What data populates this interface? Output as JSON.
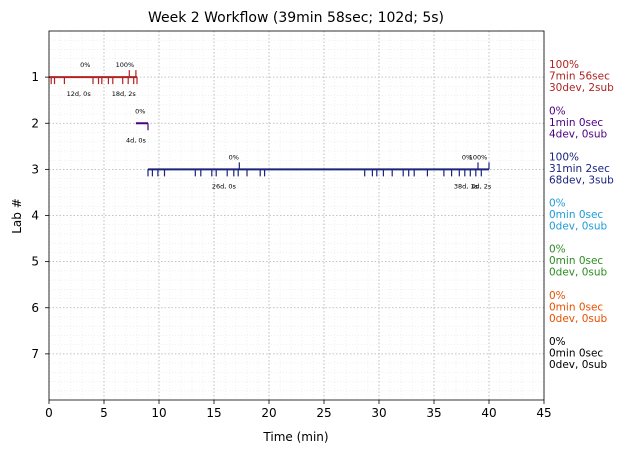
{
  "chart_data": {
    "type": "timeline",
    "title": "Week 2 Workflow (39min 58sec; 102d; 5s)",
    "xlabel": "Time (min)",
    "ylabel": "Lab #",
    "xlim": [
      0,
      45
    ],
    "ylim": [
      8,
      0
    ],
    "x_ticks": [
      "0",
      "5",
      "10",
      "15",
      "20",
      "25",
      "30",
      "35",
      "40",
      "45"
    ],
    "y_ticks": [
      "1",
      "2",
      "3",
      "4",
      "5",
      "6",
      "7"
    ],
    "grid": true,
    "labs": [
      {
        "lab": 1,
        "color": "#b22222",
        "span": [
          0,
          8
        ],
        "events": [
          0.2,
          0.5,
          1.4,
          4.0,
          4.5,
          4.8,
          5.4,
          5.8,
          6.7,
          7.2,
          7.7,
          8.0
        ],
        "submissions": [
          7.3,
          7.9
        ],
        "annotations": [
          {
            "x": 3.3,
            "pos": "above",
            "text": "0%"
          },
          {
            "x": 6.9,
            "pos": "above",
            "text": "100%"
          },
          {
            "x": 2.7,
            "pos": "below",
            "text": "12d, 0s"
          },
          {
            "x": 6.8,
            "pos": "below",
            "text": "18d, 2s"
          }
        ],
        "summary": [
          "100%",
          "7min 56sec",
          "30dev, 2sub"
        ]
      },
      {
        "lab": 2,
        "color": "#4b0082",
        "span": [
          7.9,
          9.0
        ],
        "events": [
          9.0
        ],
        "submissions": [],
        "annotations": [
          {
            "x": 8.3,
            "pos": "above",
            "text": "0%"
          },
          {
            "x": 7.9,
            "pos": "below",
            "text": "4d, 0s"
          }
        ],
        "summary": [
          "0%",
          "1min 0sec",
          "4dev, 0sub"
        ]
      },
      {
        "lab": 3,
        "color": "#1a237e",
        "span": [
          9.0,
          40.0
        ],
        "events": [
          9.0,
          9.4,
          9.9,
          10.5,
          13.3,
          13.8,
          14.8,
          15.2,
          16.2,
          16.8,
          17.2,
          18.0,
          19.2,
          19.6,
          28.7,
          29.4,
          29.8,
          30.4,
          31.2,
          32.2,
          32.7,
          33.2,
          34.4,
          35.9,
          36.6,
          37.3,
          37.8,
          38.3,
          38.8,
          39.3
        ],
        "submissions": [
          17.3,
          39.0,
          40.0
        ],
        "annotations": [
          {
            "x": 16.8,
            "pos": "above",
            "text": "0%"
          },
          {
            "x": 38.0,
            "pos": "above",
            "text": "0%"
          },
          {
            "x": 39.0,
            "pos": "above",
            "text": "100%"
          },
          {
            "x": 15.9,
            "pos": "below",
            "text": "26d, 0s"
          },
          {
            "x": 37.9,
            "pos": "below",
            "text": "38d, 1s"
          },
          {
            "x": 39.3,
            "pos": "below",
            "text": "4d, 2s"
          }
        ],
        "summary": [
          "100%",
          "31min 2sec",
          "68dev, 3sub"
        ]
      },
      {
        "lab": 4,
        "color": "#1e9bd7",
        "span": null,
        "events": [],
        "submissions": [],
        "annotations": [],
        "summary": [
          "0%",
          "0min 0sec",
          "0dev, 0sub"
        ]
      },
      {
        "lab": 5,
        "color": "#2e8b22",
        "span": null,
        "events": [],
        "submissions": [],
        "annotations": [],
        "summary": [
          "0%",
          "0min 0sec",
          "0dev, 0sub"
        ]
      },
      {
        "lab": 6,
        "color": "#e65100",
        "span": null,
        "events": [],
        "submissions": [],
        "annotations": [],
        "summary": [
          "0%",
          "0min 0sec",
          "0dev, 0sub"
        ]
      },
      {
        "lab": 7,
        "color": "#000000",
        "span": null,
        "events": [],
        "submissions": [],
        "annotations": [],
        "summary": [
          "0%",
          "0min 0sec",
          "0dev, 0sub"
        ]
      }
    ]
  }
}
